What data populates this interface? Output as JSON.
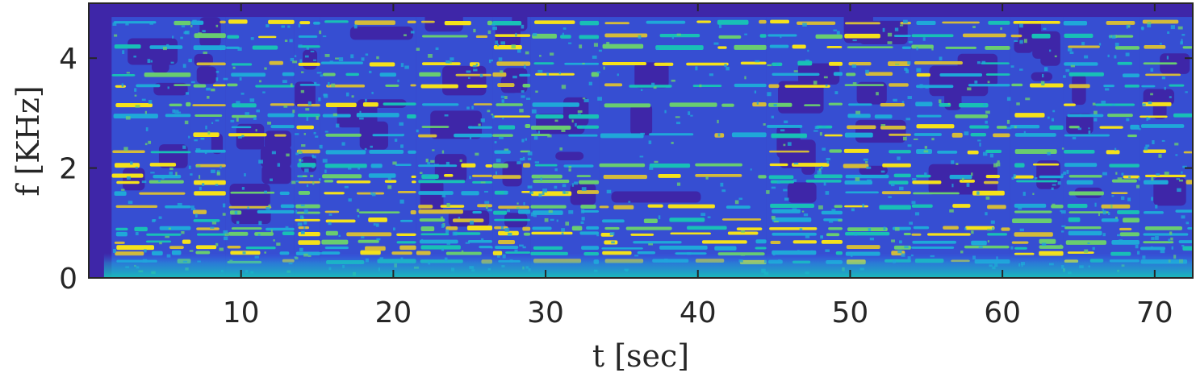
{
  "chart_data": {
    "type": "heatmap",
    "title": "",
    "xlabel": "t [sec]",
    "ylabel": "f [KHz]",
    "xlim": [
      0,
      72.5
    ],
    "ylim": [
      0,
      5.0
    ],
    "x_ticks": [
      10,
      20,
      30,
      40,
      50,
      60,
      70
    ],
    "y_ticks": [
      0,
      2,
      4
    ],
    "x_tick_labels": [
      "10",
      "20",
      "30",
      "40",
      "50",
      "60",
      "70"
    ],
    "y_tick_labels": [
      "0",
      "2",
      "4"
    ],
    "colormap": [
      "#3e26a8",
      "#2f6ff4",
      "#1fa8d9",
      "#18c0b6",
      "#69cd70",
      "#d4bb3a",
      "#f5e21b"
    ],
    "background_color": "#3e26a8",
    "notes_active_range_khz": [
      0.1,
      4.75
    ],
    "note_frequencies_khz": [
      0.3,
      0.45,
      0.55,
      0.65,
      0.8,
      0.9,
      1.05,
      1.2,
      1.3,
      1.55,
      1.75,
      1.85,
      2.05,
      2.3,
      2.6,
      2.75,
      2.95,
      3.15,
      3.5,
      3.7,
      3.9,
      4.2,
      4.4,
      4.65
    ],
    "segments": [
      {
        "t_start": 1.5,
        "t_end": 6.7
      },
      {
        "t_start": 6.7,
        "t_end": 9.0
      },
      {
        "t_start": 9.0,
        "t_end": 13.5
      },
      {
        "t_start": 13.5,
        "t_end": 15.2
      },
      {
        "t_start": 15.2,
        "t_end": 21.5
      },
      {
        "t_start": 21.5,
        "t_end": 26.5
      },
      {
        "t_start": 26.5,
        "t_end": 29.0
      },
      {
        "t_start": 29.0,
        "t_end": 33.5
      },
      {
        "t_start": 33.5,
        "t_end": 44.5
      },
      {
        "t_start": 44.5,
        "t_end": 49.5
      },
      {
        "t_start": 49.5,
        "t_end": 54.0
      },
      {
        "t_start": 54.0,
        "t_end": 60.5
      },
      {
        "t_start": 60.5,
        "t_end": 64.0
      },
      {
        "t_start": 64.0,
        "t_end": 69.0
      },
      {
        "t_start": 69.0,
        "t_end": 72.5
      }
    ]
  }
}
